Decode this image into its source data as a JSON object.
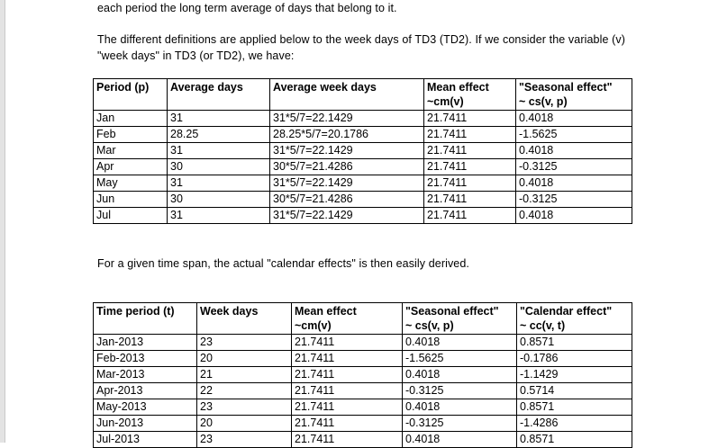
{
  "paragraphs": {
    "p1": "each period the long term average of days that belong to it.",
    "p2": "The different definitions are applied below to the week days of TD3 (TD2). If we consider the variable (v) \"week days\" in TD3 (or TD2), we have:",
    "p3": "For a given time span, the actual \"calendar effects\" is then easily derived."
  },
  "table1": {
    "headers": [
      {
        "line1": "Period (p)",
        "line2": ""
      },
      {
        "line1": "Average days",
        "line2": ""
      },
      {
        "line1": "Average week days",
        "line2": ""
      },
      {
        "line1": "Mean effect",
        "line2": "~cm(v)"
      },
      {
        "line1": "\"Seasonal effect\"",
        "line2": "~ cs(v, p)"
      }
    ],
    "rows": [
      [
        "Jan",
        "31",
        "31*5/7=22.1429",
        "21.7411",
        "0.4018"
      ],
      [
        "Feb",
        "28.25",
        "28.25*5/7=20.1786",
        "21.7411",
        "-1.5625"
      ],
      [
        "Mar",
        "31",
        "31*5/7=22.1429",
        "21.7411",
        "0.4018"
      ],
      [
        "Apr",
        "30",
        "30*5/7=21.4286",
        "21.7411",
        "-0.3125"
      ],
      [
        "May",
        "31",
        "31*5/7=22.1429",
        "21.7411",
        "0.4018"
      ],
      [
        "Jun",
        "30",
        "30*5/7=21.4286",
        "21.7411",
        "-0.3125"
      ],
      [
        "Jul",
        "31",
        "31*5/7=22.1429",
        "21.7411",
        "0.4018"
      ]
    ]
  },
  "table2": {
    "headers": [
      {
        "line1": "Time period (t)",
        "line2": ""
      },
      {
        "line1": "Week days",
        "line2": ""
      },
      {
        "line1": "Mean effect",
        "line2": "~cm(v)"
      },
      {
        "line1": "\"Seasonal effect\"",
        "line2": "~ cs(v, p)"
      },
      {
        "line1": "\"Calendar effect\"",
        "line2": "~ cc(v, t)"
      }
    ],
    "rows": [
      [
        "Jan-2013",
        "23",
        "21.7411",
        "0.4018",
        "0.8571"
      ],
      [
        "Feb-2013",
        "20",
        "21.7411",
        "-1.5625",
        "-0.1786"
      ],
      [
        "Mar-2013",
        "21",
        "21.7411",
        "0.4018",
        "-1.1429"
      ],
      [
        "Apr-2013",
        "22",
        "21.7411",
        "-0.3125",
        "0.5714"
      ],
      [
        "May-2013",
        "23",
        "21.7411",
        "0.4018",
        "0.8571"
      ],
      [
        "Jun-2013",
        "20",
        "21.7411",
        "-0.3125",
        "-1.4286"
      ],
      [
        "Jul-2013",
        "23",
        "21.7411",
        "0.4018",
        "0.8571"
      ]
    ]
  }
}
